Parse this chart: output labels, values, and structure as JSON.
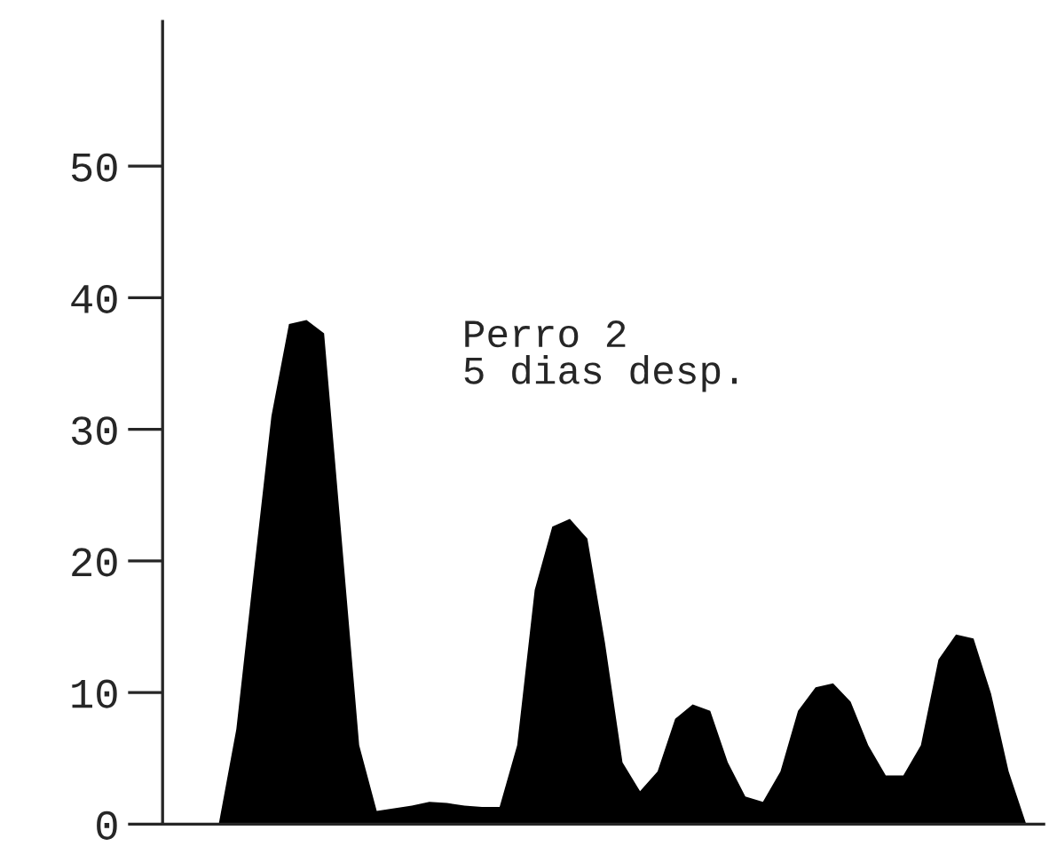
{
  "chart_data": {
    "type": "area",
    "color": "#000000",
    "categories": [
      null,
      null,
      null,
      null,
      null,
      null,
      null,
      null,
      null,
      null,
      null,
      null,
      null,
      null,
      null,
      null,
      null,
      null,
      null,
      null,
      null,
      null,
      null,
      null,
      null,
      null,
      null,
      null,
      null,
      null,
      null,
      null,
      null,
      null,
      null,
      null,
      null,
      null,
      null,
      null,
      null,
      null,
      null,
      null,
      null,
      null,
      null,
      null,
      null,
      null,
      null
    ],
    "values": [
      0,
      0,
      0,
      0,
      7.2,
      19.2,
      31,
      38,
      38.3,
      37.3,
      21.7,
      6,
      1,
      1.2,
      1.4,
      1.7,
      1.6,
      1.4,
      1.3,
      1.3,
      6,
      17.8,
      22.6,
      23.2,
      21.7,
      13.8,
      4.7,
      2.5,
      4,
      8,
      9.1,
      8.6,
      4.7,
      2.1,
      1.7,
      4,
      8.6,
      10.4,
      10.7,
      9.3,
      6,
      3.7,
      3.7,
      6,
      12.5,
      14.4,
      14.1,
      9.9,
      4,
      0,
      0
    ],
    "ylim": [
      0,
      61
    ],
    "yticks": [
      0,
      10,
      20,
      30,
      40,
      50
    ],
    "tick_labels": "y",
    "grid": false,
    "annotations": [
      "Perro 2\n5 dias desp."
    ]
  }
}
